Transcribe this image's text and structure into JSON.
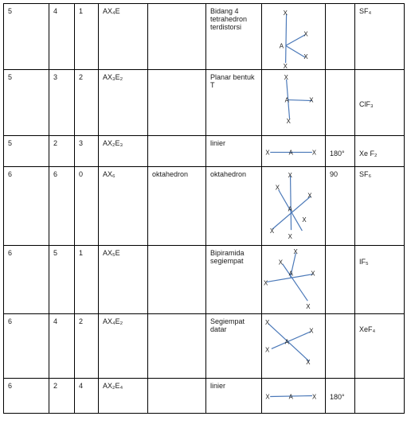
{
  "rows": [
    {
      "total_pairs": "5",
      "bonding_pairs": "4",
      "lone_pairs": "1",
      "formula_type": "AX₄E",
      "electron_geometry": "",
      "molecular_shape": "Bidang 4 tetrahedron terdistorsi",
      "bond_angle": "",
      "example": "SF₄",
      "diagram": {
        "center": "A",
        "ligand": "X"
      }
    },
    {
      "total_pairs": "5",
      "bonding_pairs": "3",
      "lone_pairs": "2",
      "formula_type": "AX₃E₂",
      "electron_geometry": "",
      "molecular_shape": "Planar bentuk T",
      "bond_angle": "",
      "example": "ClF₃",
      "diagram": {
        "center": "A",
        "ligand": "X"
      }
    },
    {
      "total_pairs": "5",
      "bonding_pairs": "2",
      "lone_pairs": "3",
      "formula_type": "AX₂E₃",
      "electron_geometry": "",
      "molecular_shape": "linier",
      "bond_angle": "180°",
      "example": "Xe F₂",
      "diagram": {
        "center": "A",
        "ligand": "X"
      }
    },
    {
      "total_pairs": "6",
      "bonding_pairs": "6",
      "lone_pairs": "0",
      "formula_type": "AX₆",
      "electron_geometry": "oktahedron",
      "molecular_shape": "oktahedron",
      "bond_angle": "90",
      "example": "SF₆",
      "diagram": {
        "center": "A",
        "ligand": "X"
      }
    },
    {
      "total_pairs": "6",
      "bonding_pairs": "5",
      "lone_pairs": "1",
      "formula_type": "AX₅E",
      "electron_geometry": "",
      "molecular_shape": "Bipiramida segiempat",
      "bond_angle": "",
      "example": "IF₅",
      "diagram": {
        "center": "A",
        "ligand": "X"
      }
    },
    {
      "total_pairs": "6",
      "bonding_pairs": "4",
      "lone_pairs": "2",
      "formula_type": "AX₄E₂",
      "electron_geometry": "",
      "molecular_shape": "Segiempat datar",
      "bond_angle": "",
      "example": "XeF₄",
      "diagram": {
        "center": "A",
        "ligand": "X"
      }
    },
    {
      "total_pairs": "6",
      "bonding_pairs": "2",
      "lone_pairs": "4",
      "formula_type": "AX₂E₄",
      "electron_geometry": "",
      "molecular_shape": "linier",
      "bond_angle": "180°",
      "example": "",
      "diagram": {
        "center": "A",
        "ligand": "X"
      }
    }
  ]
}
